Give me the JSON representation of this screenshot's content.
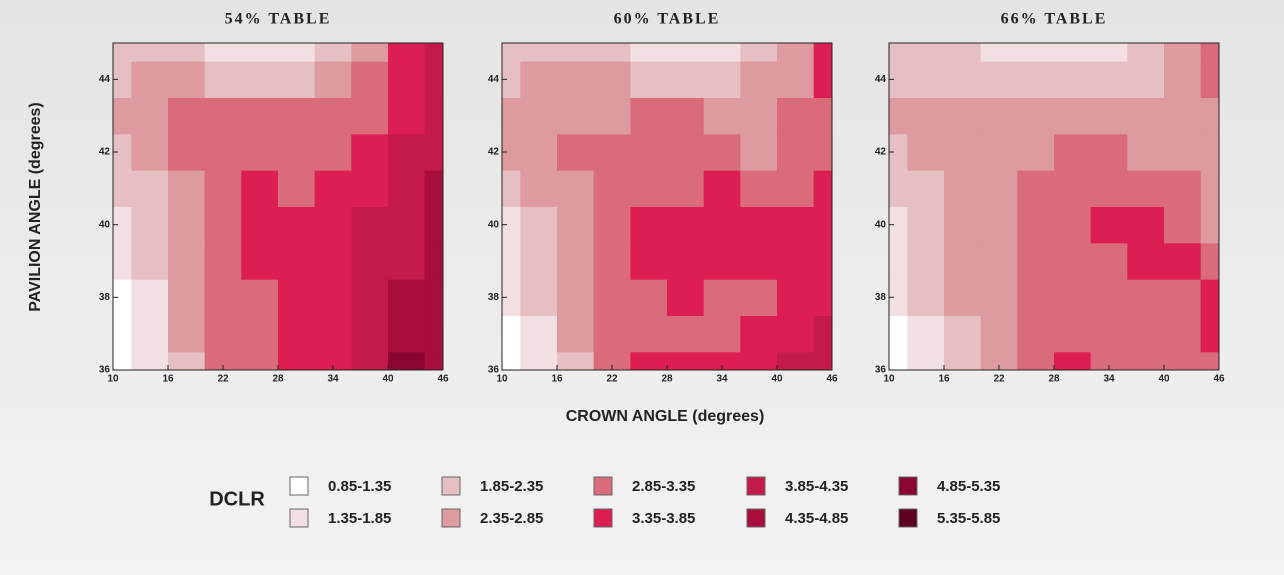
{
  "chart_data": [
    {
      "type": "contour",
      "title": "54% TABLE",
      "y_label": "PAVILION ANGLE (degrees)",
      "x": [
        10,
        14,
        18,
        22,
        26,
        30,
        34,
        38,
        42,
        46
      ],
      "y": [
        36,
        37,
        38,
        39,
        40,
        41,
        42,
        43,
        44,
        45
      ],
      "xlim": [
        10,
        46
      ],
      "xticks": [
        10,
        16,
        22,
        28,
        34,
        40,
        46
      ],
      "ylim": [
        36,
        45
      ],
      "yticks": [
        36,
        38,
        40,
        42,
        44
      ],
      "z": [
        [
          1.1,
          1.6,
          2.3,
          2.9,
          3.2,
          3.6,
          3.7,
          4.2,
          5.0,
          4.6
        ],
        [
          1.2,
          1.7,
          2.4,
          2.9,
          3.3,
          3.6,
          3.8,
          4.3,
          4.7,
          4.6
        ],
        [
          1.3,
          1.8,
          2.4,
          3.0,
          3.3,
          3.6,
          3.8,
          4.3,
          4.6,
          4.7
        ],
        [
          1.5,
          1.9,
          2.5,
          3.0,
          3.4,
          3.6,
          3.7,
          4.0,
          4.3,
          4.6
        ],
        [
          1.7,
          2.1,
          2.6,
          3.1,
          3.4,
          3.5,
          3.6,
          3.9,
          4.2,
          4.5
        ],
        [
          2.0,
          2.3,
          2.7,
          3.1,
          3.4,
          3.3,
          3.5,
          3.8,
          4.1,
          4.4
        ],
        [
          2.3,
          2.6,
          2.9,
          3.0,
          3.2,
          3.2,
          3.2,
          3.6,
          3.9,
          4.3
        ],
        [
          2.5,
          2.7,
          2.9,
          2.9,
          2.9,
          2.9,
          3.0,
          3.3,
          3.7,
          4.1
        ],
        [
          2.3,
          2.5,
          2.4,
          2.3,
          2.2,
          2.3,
          2.5,
          2.9,
          3.5,
          4.0
        ],
        [
          2.1,
          2.2,
          2.1,
          1.8,
          1.7,
          1.7,
          2.0,
          2.7,
          3.4,
          3.9
        ]
      ]
    },
    {
      "type": "contour",
      "title": "60% TABLE",
      "x_label": "CROWN ANGLE (degrees)",
      "x": [
        10,
        14,
        18,
        22,
        26,
        30,
        34,
        38,
        42,
        46
      ],
      "y": [
        36,
        37,
        38,
        39,
        40,
        41,
        42,
        43,
        44,
        45
      ],
      "xlim": [
        10,
        46
      ],
      "xticks": [
        10,
        16,
        22,
        28,
        34,
        40,
        46
      ],
      "ylim": [
        36,
        45
      ],
      "yticks": [
        36,
        38,
        40,
        42,
        44
      ],
      "z": [
        [
          1.2,
          1.7,
          2.3,
          2.9,
          3.5,
          3.6,
          3.7,
          3.7,
          4.0,
          4.0
        ],
        [
          1.3,
          1.8,
          2.4,
          2.9,
          3.3,
          3.2,
          3.2,
          3.6,
          3.7,
          3.9
        ],
        [
          1.4,
          1.9,
          2.5,
          3.0,
          3.3,
          3.4,
          3.2,
          3.3,
          3.6,
          3.8
        ],
        [
          1.6,
          2.0,
          2.6,
          3.1,
          3.5,
          3.7,
          3.6,
          3.5,
          3.5,
          3.7
        ],
        [
          1.8,
          2.2,
          2.7,
          3.0,
          3.4,
          3.5,
          3.6,
          3.4,
          3.4,
          3.6
        ],
        [
          2.1,
          2.4,
          2.8,
          3.0,
          3.1,
          3.3,
          3.5,
          3.2,
          3.1,
          3.4
        ],
        [
          2.4,
          2.6,
          2.9,
          3.0,
          3.0,
          3.0,
          3.0,
          2.8,
          3.0,
          3.3
        ],
        [
          2.6,
          2.7,
          2.8,
          2.8,
          2.9,
          2.9,
          2.7,
          2.6,
          2.9,
          3.3
        ],
        [
          2.3,
          2.4,
          2.4,
          2.4,
          2.3,
          2.2,
          2.2,
          2.4,
          2.8,
          3.4
        ],
        [
          2.1,
          2.2,
          2.2,
          2.1,
          1.8,
          1.7,
          1.8,
          2.2,
          2.8,
          3.5
        ]
      ]
    },
    {
      "type": "contour",
      "title": "66% TABLE",
      "x": [
        10,
        14,
        18,
        22,
        26,
        30,
        34,
        38,
        42,
        46
      ],
      "y": [
        36,
        37,
        38,
        39,
        40,
        41,
        42,
        43,
        44,
        45
      ],
      "xlim": [
        10,
        46
      ],
      "xticks": [
        10,
        16,
        22,
        28,
        34,
        40,
        46
      ],
      "ylim": [
        36,
        45
      ],
      "yticks": [
        36,
        38,
        40,
        42,
        44
      ],
      "z": [
        [
          1.2,
          1.6,
          2.2,
          2.8,
          3.0,
          3.5,
          3.1,
          2.9,
          3.0,
          3.2
        ],
        [
          1.3,
          1.7,
          2.3,
          2.8,
          3.1,
          3.3,
          3.1,
          2.9,
          2.9,
          3.4
        ],
        [
          1.4,
          1.9,
          2.4,
          2.8,
          2.9,
          3.0,
          3.0,
          3.0,
          3.2,
          3.4
        ],
        [
          1.6,
          2.0,
          2.5,
          2.7,
          2.9,
          2.9,
          3.2,
          3.4,
          3.5,
          2.9
        ],
        [
          1.8,
          2.2,
          2.5,
          2.7,
          3.0,
          3.1,
          3.4,
          3.6,
          3.1,
          2.8
        ],
        [
          2.0,
          2.3,
          2.6,
          2.8,
          3.0,
          3.0,
          3.1,
          3.0,
          2.9,
          2.7
        ],
        [
          2.3,
          2.5,
          2.7,
          2.7,
          2.8,
          3.0,
          2.9,
          2.7,
          2.6,
          2.6
        ],
        [
          2.4,
          2.6,
          2.6,
          2.5,
          2.6,
          2.6,
          2.6,
          2.4,
          2.6,
          2.7
        ],
        [
          2.2,
          2.2,
          2.2,
          2.1,
          2.0,
          2.0,
          2.1,
          2.2,
          2.7,
          2.9
        ],
        [
          2.0,
          2.0,
          1.9,
          1.8,
          1.7,
          1.6,
          1.7,
          2.0,
          2.6,
          3.3
        ]
      ]
    }
  ],
  "legend": {
    "title": "DCLR",
    "items": [
      {
        "label": "0.85-1.35",
        "min": 0.85,
        "max": 1.35,
        "color": "#ffffff"
      },
      {
        "label": "1.35-1.85",
        "min": 1.35,
        "max": 1.85,
        "color": "#f2dfe2"
      },
      {
        "label": "1.85-2.35",
        "min": 1.85,
        "max": 2.35,
        "color": "#e6bfc3"
      },
      {
        "label": "2.35-2.85",
        "min": 2.35,
        "max": 2.85,
        "color": "#dd9a9f"
      },
      {
        "label": "2.85-3.35",
        "min": 2.85,
        "max": 3.35,
        "color": "#d96b7a"
      },
      {
        "label": "3.35-3.85",
        "min": 3.35,
        "max": 3.85,
        "color": "#dc1e52"
      },
      {
        "label": "3.85-4.35",
        "min": 3.85,
        "max": 4.35,
        "color": "#c41a4a"
      },
      {
        "label": "4.35-4.85",
        "min": 4.35,
        "max": 4.85,
        "color": "#a80d3c"
      },
      {
        "label": "4.85-5.35",
        "min": 4.85,
        "max": 5.35,
        "color": "#8a0530"
      },
      {
        "label": "5.35-5.85",
        "min": 5.35,
        "max": 5.85,
        "color": "#5e0020"
      }
    ]
  }
}
